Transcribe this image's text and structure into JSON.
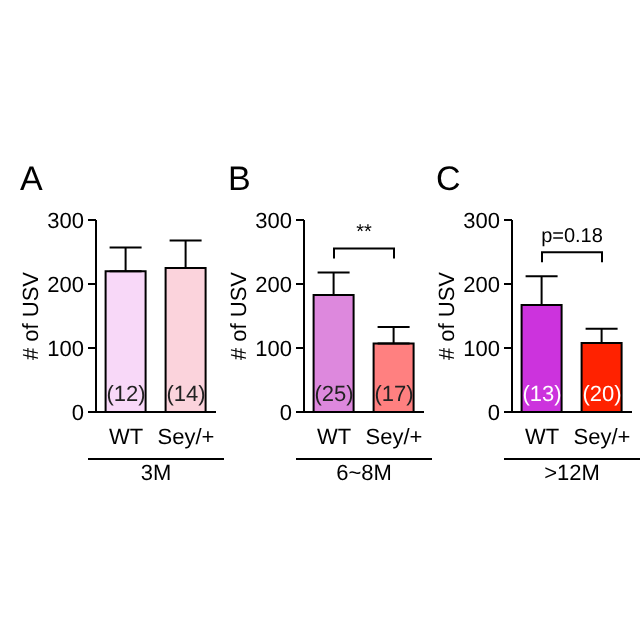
{
  "chart_data": [
    {
      "type": "bar",
      "title": "A",
      "ylabel": "# of USV",
      "xlabel": "3M",
      "categories": [
        "WT",
        "Sey/+"
      ],
      "values": [
        220,
        225
      ],
      "errors": [
        [
          220,
          257
        ],
        [
          225,
          268
        ]
      ],
      "colors": [
        "#f8d8f8",
        "#fbd3dc"
      ],
      "ylim": [
        0,
        300
      ],
      "yticks": [
        0,
        100,
        200,
        300
      ],
      "annotations": [
        "(12)",
        "(14)"
      ]
    },
    {
      "type": "bar",
      "title": "B",
      "ylabel": "# of USV",
      "xlabel": "6~8M",
      "categories": [
        "WT",
        "Sey/+"
      ],
      "values": [
        183,
        107
      ],
      "errors": [
        [
          183,
          218
        ],
        [
          107,
          133
        ]
      ],
      "colors": [
        "#dd88dd",
        "#ff8080"
      ],
      "ylim": [
        0,
        300
      ],
      "yticks": [
        0,
        100,
        200,
        300
      ],
      "annotations": [
        "**",
        "(25)",
        "(17)"
      ]
    },
    {
      "type": "bar",
      "title": "C",
      "ylabel": "# of USV",
      "xlabel": ">12M",
      "categories": [
        "WT",
        "Sey/+"
      ],
      "values": [
        167,
        108
      ],
      "errors": [
        [
          167,
          212
        ],
        [
          108,
          130
        ]
      ],
      "colors": [
        "#cc33dd",
        "#ff2200"
      ],
      "ylim": [
        0,
        300
      ],
      "yticks": [
        0,
        100,
        200,
        300
      ],
      "annotations": [
        "p=0.18",
        "(13)",
        "(20)"
      ]
    }
  ]
}
